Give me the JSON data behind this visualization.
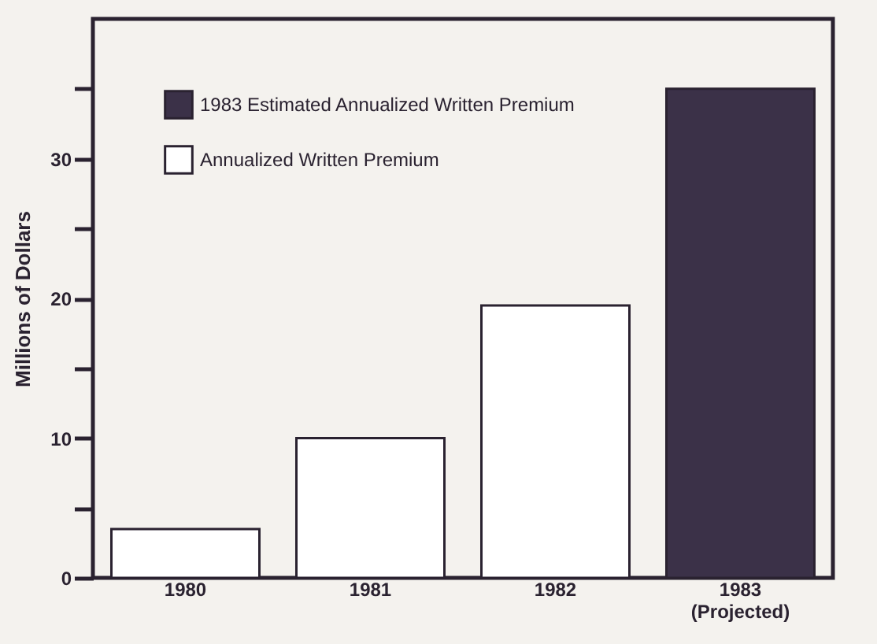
{
  "chart_data": {
    "type": "bar",
    "ylabel": "Millions of Dollars",
    "categories": [
      "1980",
      "1981",
      "1982",
      "1983\n(Projected)"
    ],
    "series": [
      {
        "name": "1983 Estimated Annualized Written Premium",
        "color": "#3b3148",
        "values": [
          null,
          null,
          null,
          35
        ]
      },
      {
        "name": "Annualized Written Premium",
        "color": "#ffffff",
        "values": [
          3.5,
          10,
          19.5,
          null
        ]
      }
    ],
    "ylim": [
      0,
      40
    ],
    "yticks": [
      0,
      {
        "value": 5,
        "label": null
      },
      10,
      {
        "value": 15,
        "label": null
      },
      20,
      {
        "value": 25,
        "label": null
      },
      30,
      {
        "value": 35,
        "label": null
      }
    ],
    "grid": false,
    "legend": "top left"
  }
}
